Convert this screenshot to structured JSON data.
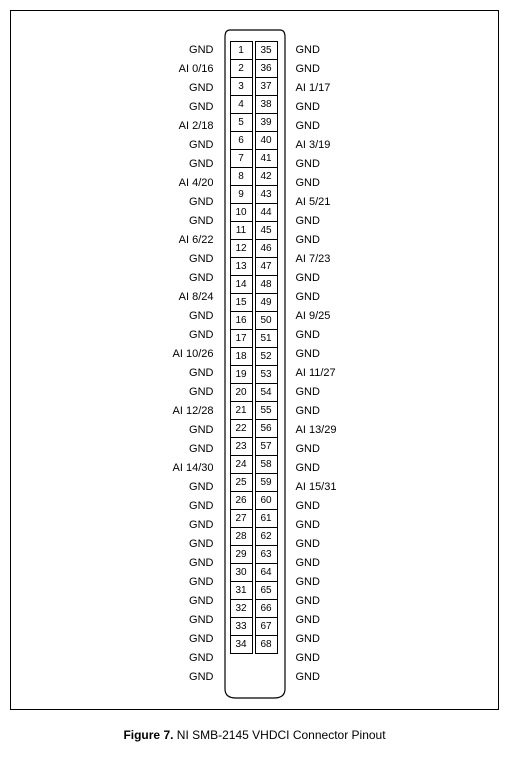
{
  "figure": {
    "caption_label": "Figure 7.",
    "caption_text": "NI SMB-2145 VHDCI Connector Pinout"
  },
  "connector": {
    "outline_stroke": "#000000",
    "outline_fill": "#ffffff",
    "box_border": "#000000",
    "text_color": "#000000",
    "font_size_label": 11,
    "font_size_pin": 10,
    "rows": [
      {
        "left_label": "GND",
        "pin_a": "1",
        "pin_b": "35",
        "right_label": "GND"
      },
      {
        "left_label": "AI 0/16",
        "pin_a": "2",
        "pin_b": "36",
        "right_label": "GND"
      },
      {
        "left_label": "GND",
        "pin_a": "3",
        "pin_b": "37",
        "right_label": "AI 1/17"
      },
      {
        "left_label": "GND",
        "pin_a": "4",
        "pin_b": "38",
        "right_label": "GND"
      },
      {
        "left_label": "AI 2/18",
        "pin_a": "5",
        "pin_b": "39",
        "right_label": "GND"
      },
      {
        "left_label": "GND",
        "pin_a": "6",
        "pin_b": "40",
        "right_label": "AI 3/19"
      },
      {
        "left_label": "GND",
        "pin_a": "7",
        "pin_b": "41",
        "right_label": "GND"
      },
      {
        "left_label": "AI 4/20",
        "pin_a": "8",
        "pin_b": "42",
        "right_label": "GND"
      },
      {
        "left_label": "GND",
        "pin_a": "9",
        "pin_b": "43",
        "right_label": "AI 5/21"
      },
      {
        "left_label": "GND",
        "pin_a": "10",
        "pin_b": "44",
        "right_label": "GND"
      },
      {
        "left_label": "AI 6/22",
        "pin_a": "11",
        "pin_b": "45",
        "right_label": "GND"
      },
      {
        "left_label": "GND",
        "pin_a": "12",
        "pin_b": "46",
        "right_label": "AI 7/23"
      },
      {
        "left_label": "GND",
        "pin_a": "13",
        "pin_b": "47",
        "right_label": "GND"
      },
      {
        "left_label": "AI 8/24",
        "pin_a": "14",
        "pin_b": "48",
        "right_label": "GND"
      },
      {
        "left_label": "GND",
        "pin_a": "15",
        "pin_b": "49",
        "right_label": "AI 9/25"
      },
      {
        "left_label": "GND",
        "pin_a": "16",
        "pin_b": "50",
        "right_label": "GND"
      },
      {
        "left_label": "AI 10/26",
        "pin_a": "17",
        "pin_b": "51",
        "right_label": "GND"
      },
      {
        "left_label": "GND",
        "pin_a": "18",
        "pin_b": "52",
        "right_label": "AI 11/27"
      },
      {
        "left_label": "GND",
        "pin_a": "19",
        "pin_b": "53",
        "right_label": "GND"
      },
      {
        "left_label": "AI 12/28",
        "pin_a": "20",
        "pin_b": "54",
        "right_label": "GND"
      },
      {
        "left_label": "GND",
        "pin_a": "21",
        "pin_b": "55",
        "right_label": "AI 13/29"
      },
      {
        "left_label": "GND",
        "pin_a": "22",
        "pin_b": "56",
        "right_label": "GND"
      },
      {
        "left_label": "AI 14/30",
        "pin_a": "23",
        "pin_b": "57",
        "right_label": "GND"
      },
      {
        "left_label": "GND",
        "pin_a": "24",
        "pin_b": "58",
        "right_label": "AI 15/31"
      },
      {
        "left_label": "GND",
        "pin_a": "25",
        "pin_b": "59",
        "right_label": "GND"
      },
      {
        "left_label": "GND",
        "pin_a": "26",
        "pin_b": "60",
        "right_label": "GND"
      },
      {
        "left_label": "GND",
        "pin_a": "27",
        "pin_b": "61",
        "right_label": "GND"
      },
      {
        "left_label": "GND",
        "pin_a": "28",
        "pin_b": "62",
        "right_label": "GND"
      },
      {
        "left_label": "GND",
        "pin_a": "29",
        "pin_b": "63",
        "right_label": "GND"
      },
      {
        "left_label": "GND",
        "pin_a": "30",
        "pin_b": "64",
        "right_label": "GND"
      },
      {
        "left_label": "GND",
        "pin_a": "31",
        "pin_b": "65",
        "right_label": "GND"
      },
      {
        "left_label": "GND",
        "pin_a": "32",
        "pin_b": "66",
        "right_label": "GND"
      },
      {
        "left_label": "GND",
        "pin_a": "33",
        "pin_b": "67",
        "right_label": "GND"
      },
      {
        "left_label": "GND",
        "pin_a": "34",
        "pin_b": "68",
        "right_label": "GND"
      }
    ]
  }
}
